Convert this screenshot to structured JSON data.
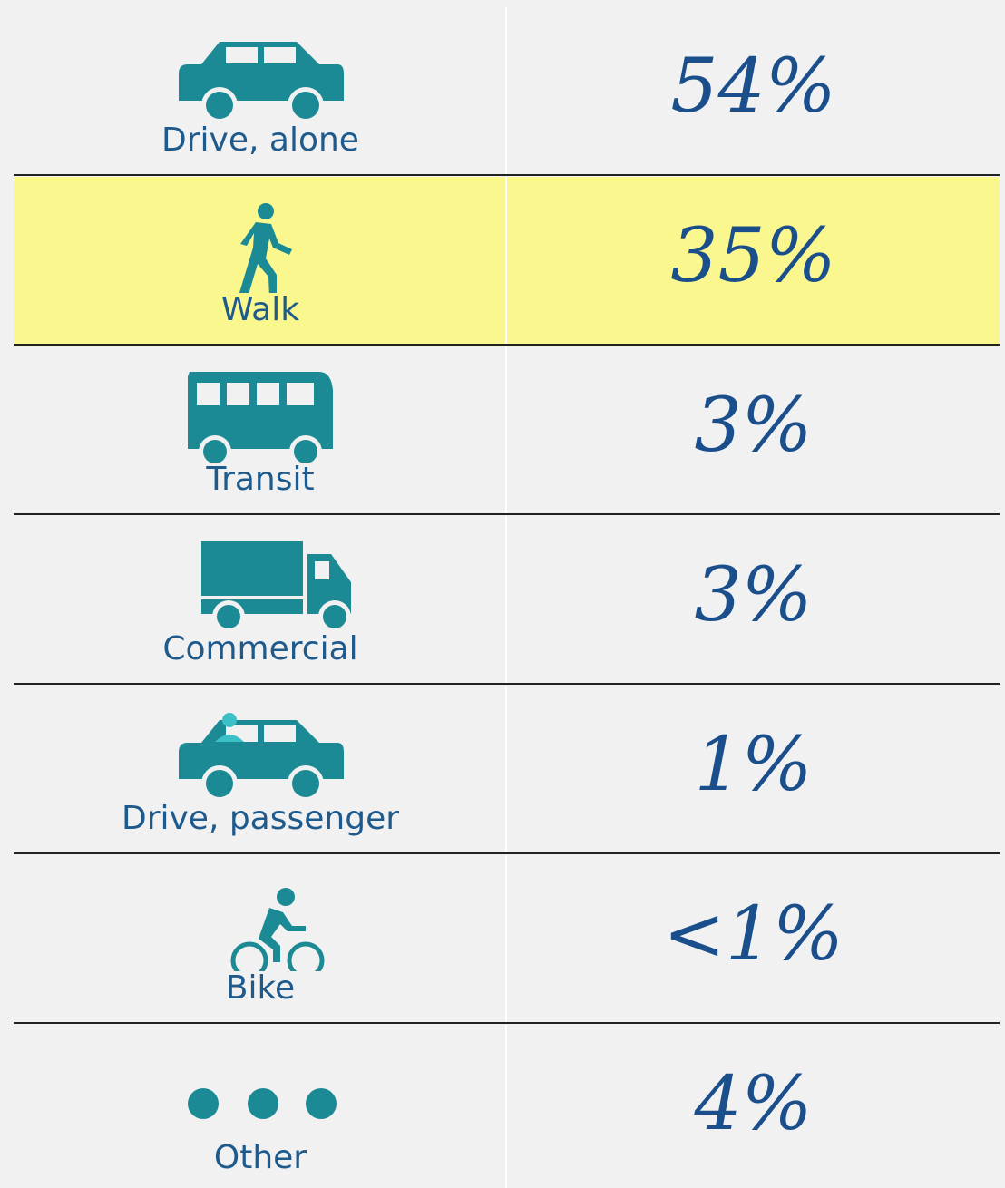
{
  "table": {
    "rows": [
      {
        "mode": "Drive, alone",
        "share": "54%"
      },
      {
        "mode": "Walk",
        "share": "35%"
      },
      {
        "mode": "Transit",
        "share": "3%"
      },
      {
        "mode": "Commercial",
        "share": "3%"
      },
      {
        "mode": "Drive, passenger",
        "share": "1%"
      },
      {
        "mode": "Bike",
        "share": "<1%"
      },
      {
        "mode": "Other",
        "share": "4%"
      }
    ]
  }
}
